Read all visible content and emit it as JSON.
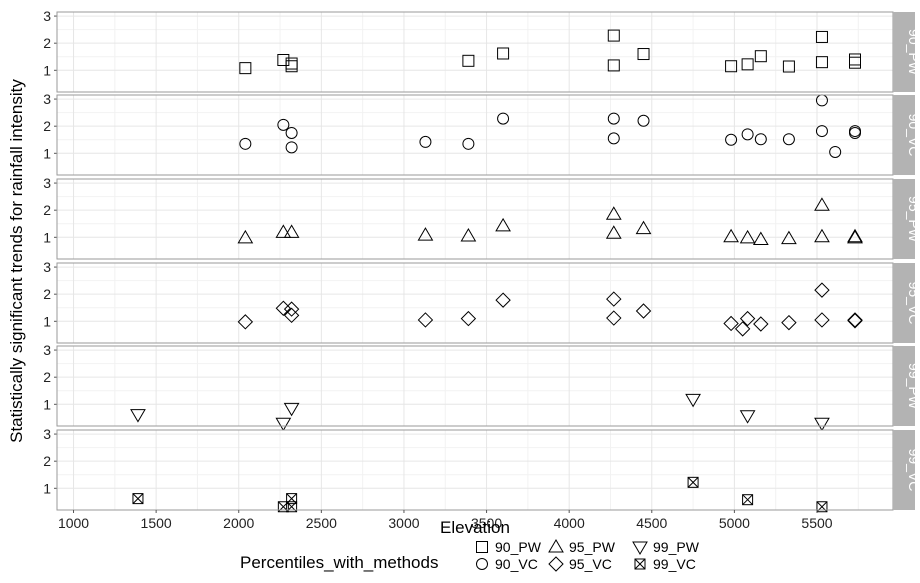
{
  "chart_data": {
    "type": "scatter",
    "facet": "rows",
    "xlabel": "Elevation",
    "ylabel": "Statistically significant trends for rainfall intensity",
    "xlim": [
      900,
      5960
    ],
    "ylim": [
      0.2,
      3.15
    ],
    "x_ticks": [
      1000,
      1500,
      2000,
      2500,
      3000,
      3500,
      4000,
      4500,
      5000,
      5500
    ],
    "y_ticks": [
      1,
      2,
      3
    ],
    "grid": true,
    "legend_title": "Percentiles_with_methods",
    "legend_position": "bottom",
    "colors": {
      "strip_bg": "#b3b3b3",
      "strip_text": "#ffffff",
      "grid_major": "#e6e6e6",
      "grid_minor": "#f2f2f2",
      "panel_border": "#9a9a9a",
      "marker": "#000000"
    },
    "series": [
      {
        "name": "90_PW",
        "marker": "square",
        "points": [
          [
            2040,
            1.08
          ],
          [
            2270,
            1.38
          ],
          [
            2320,
            1.25
          ],
          [
            2320,
            1.15
          ],
          [
            3390,
            1.35
          ],
          [
            3600,
            1.62
          ],
          [
            4270,
            2.28
          ],
          [
            4270,
            1.18
          ],
          [
            4450,
            1.6
          ],
          [
            4980,
            1.15
          ],
          [
            5080,
            1.22
          ],
          [
            5160,
            1.52
          ],
          [
            5330,
            1.14
          ],
          [
            5530,
            2.23
          ],
          [
            5530,
            1.3
          ],
          [
            5730,
            1.4
          ],
          [
            5730,
            1.28
          ]
        ]
      },
      {
        "name": "90_VC",
        "marker": "circle",
        "points": [
          [
            2040,
            1.35
          ],
          [
            2270,
            2.05
          ],
          [
            2320,
            1.75
          ],
          [
            2320,
            1.22
          ],
          [
            3130,
            1.42
          ],
          [
            3390,
            1.35
          ],
          [
            3600,
            2.28
          ],
          [
            4270,
            2.28
          ],
          [
            4270,
            1.55
          ],
          [
            4450,
            2.2
          ],
          [
            4980,
            1.5
          ],
          [
            5080,
            1.7
          ],
          [
            5160,
            1.52
          ],
          [
            5330,
            1.52
          ],
          [
            5530,
            2.95
          ],
          [
            5530,
            1.82
          ],
          [
            5610,
            1.05
          ],
          [
            5730,
            1.82
          ],
          [
            5730,
            1.75
          ]
        ]
      },
      {
        "name": "95_PW",
        "marker": "triangle-up",
        "points": [
          [
            2040,
            0.98
          ],
          [
            2270,
            1.18
          ],
          [
            2320,
            1.18
          ],
          [
            3130,
            1.08
          ],
          [
            3390,
            1.05
          ],
          [
            3600,
            1.42
          ],
          [
            4270,
            1.85
          ],
          [
            4270,
            1.15
          ],
          [
            4450,
            1.32
          ],
          [
            4980,
            1.02
          ],
          [
            5080,
            0.98
          ],
          [
            5160,
            0.92
          ],
          [
            5330,
            0.95
          ],
          [
            5530,
            2.18
          ],
          [
            5530,
            1.02
          ],
          [
            5730,
            1.02
          ],
          [
            5730,
            0.98
          ]
        ]
      },
      {
        "name": "95_VC",
        "marker": "diamond",
        "points": [
          [
            2040,
            0.98
          ],
          [
            2270,
            1.48
          ],
          [
            2320,
            1.45
          ],
          [
            2320,
            1.22
          ],
          [
            3130,
            1.05
          ],
          [
            3390,
            1.1
          ],
          [
            3600,
            1.78
          ],
          [
            4270,
            1.82
          ],
          [
            4270,
            1.12
          ],
          [
            4450,
            1.38
          ],
          [
            4980,
            0.92
          ],
          [
            5050,
            0.72
          ],
          [
            5080,
            1.1
          ],
          [
            5160,
            0.9
          ],
          [
            5330,
            0.95
          ],
          [
            5530,
            2.15
          ],
          [
            5530,
            1.05
          ],
          [
            5730,
            1.02
          ],
          [
            5730,
            1.05
          ]
        ]
      },
      {
        "name": "99_PW",
        "marker": "triangle-down",
        "points": [
          [
            1390,
            0.62
          ],
          [
            2270,
            0.3
          ],
          [
            2320,
            0.85
          ],
          [
            4750,
            1.18
          ],
          [
            5080,
            0.58
          ],
          [
            5530,
            0.3
          ]
        ]
      },
      {
        "name": "99_VC",
        "marker": "square-x",
        "points": [
          [
            1390,
            0.62
          ],
          [
            2270,
            0.32
          ],
          [
            2320,
            0.62
          ],
          [
            2320,
            0.32
          ],
          [
            4750,
            1.22
          ],
          [
            5080,
            0.58
          ],
          [
            5530,
            0.32
          ]
        ]
      }
    ]
  }
}
